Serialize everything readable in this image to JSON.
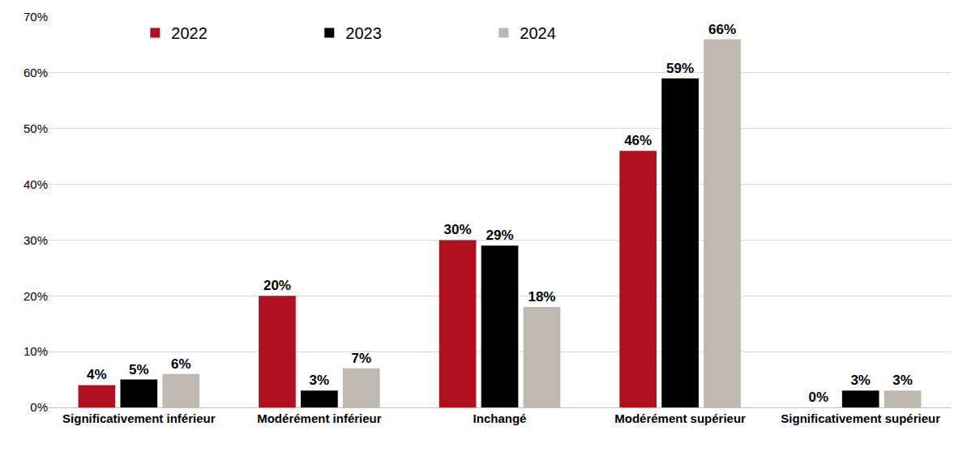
{
  "chart_data": {
    "type": "bar",
    "categories": [
      "Significativement inférieur",
      "Modérément inférieur",
      "Inchangé",
      "Modérément supérieur",
      "Significativement supérieur"
    ],
    "series": [
      {
        "name": "2022",
        "color": "#b01020",
        "values": [
          4,
          20,
          30,
          46,
          0
        ],
        "value_labels": [
          "4%",
          "20%",
          "30%",
          "46%",
          "0%"
        ]
      },
      {
        "name": "2023",
        "color": "#000000",
        "values": [
          5,
          3,
          29,
          59,
          3
        ],
        "value_labels": [
          "5%",
          "3%",
          "29%",
          "59%",
          "3%"
        ]
      },
      {
        "name": "2024",
        "color": "#bfb8ae",
        "values": [
          6,
          7,
          18,
          66,
          3
        ],
        "value_labels": [
          "6%",
          "7%",
          "18%",
          "66%",
          "3%"
        ]
      }
    ],
    "ylim": [
      0,
      70
    ],
    "yticks": [
      {
        "value": 0,
        "label": "0%"
      },
      {
        "value": 10,
        "label": "10%"
      },
      {
        "value": 20,
        "label": "20%"
      },
      {
        "value": 30,
        "label": "30%"
      },
      {
        "value": 40,
        "label": "40%"
      },
      {
        "value": 50,
        "label": "50%"
      },
      {
        "value": 60,
        "label": "60%"
      },
      {
        "value": 70,
        "label": "70%"
      }
    ],
    "grid": true,
    "legend": "top-left",
    "data_labels": true
  }
}
